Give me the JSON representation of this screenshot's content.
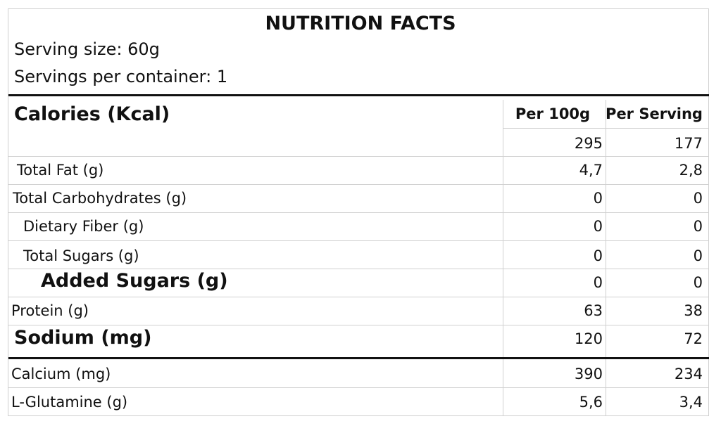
{
  "title": "NUTRITION FACTS",
  "serving_size": "Serving size: 60g",
  "servings_per_container": "Servings per container: 1",
  "headers": {
    "row_label": "Calories (Kcal)",
    "per100": "Per 100g",
    "perServing": "Per Serving"
  },
  "calories": {
    "per100": "295",
    "perServing": "177"
  },
  "rows": [
    {
      "label": "Total Fat (g)",
      "per100": "4,7",
      "perServing": "2,8"
    },
    {
      "label": "Total Carbohydrates (g)",
      "per100": "0",
      "perServing": "0"
    },
    {
      "label": "Dietary Fiber (g)",
      "per100": "0",
      "perServing": "0"
    },
    {
      "label": "Total Sugars (g)",
      "per100": "0",
      "perServing": "0"
    },
    {
      "label": "Added Sugars (g)",
      "per100": "0",
      "perServing": "0"
    },
    {
      "label": "Protein (g)",
      "per100": "63",
      "perServing": "38"
    },
    {
      "label": "Sodium (mg)",
      "per100": "120",
      "perServing": "72"
    },
    {
      "label": "Calcium (mg)",
      "per100": "390",
      "perServing": "234"
    },
    {
      "label": "L-Glutamine (g)",
      "per100": "5,6",
      "perServing": "3,4"
    }
  ]
}
